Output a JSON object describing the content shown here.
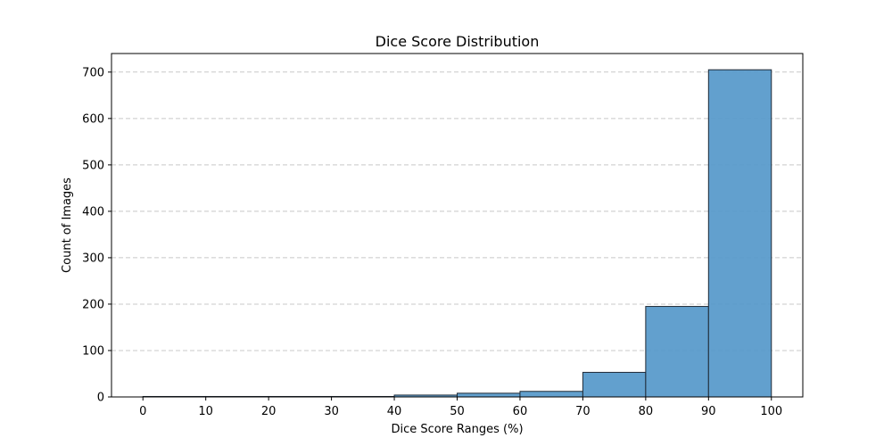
{
  "chart_data": {
    "type": "bar",
    "title": "Dice Score Distribution",
    "xlabel": "Dice Score Ranges (%)",
    "ylabel": "Count of Images",
    "bins": [
      {
        "start": 0,
        "end": 10,
        "count": 1
      },
      {
        "start": 10,
        "end": 20,
        "count": 1
      },
      {
        "start": 20,
        "end": 30,
        "count": 1
      },
      {
        "start": 30,
        "end": 40,
        "count": 1
      },
      {
        "start": 40,
        "end": 50,
        "count": 4
      },
      {
        "start": 50,
        "end": 60,
        "count": 8
      },
      {
        "start": 60,
        "end": 70,
        "count": 12
      },
      {
        "start": 70,
        "end": 80,
        "count": 53
      },
      {
        "start": 80,
        "end": 90,
        "count": 195
      },
      {
        "start": 90,
        "end": 100,
        "count": 705
      }
    ],
    "xlim": [
      -5,
      105
    ],
    "ylim": [
      0,
      740
    ],
    "x_ticks": [
      "0",
      "10",
      "20",
      "30",
      "40",
      "50",
      "60",
      "70",
      "80",
      "90",
      "100"
    ],
    "y_ticks": [
      "0",
      "100",
      "200",
      "300",
      "400",
      "500",
      "600",
      "700"
    ],
    "grid": "horizontal-dashed",
    "bar_color": "#5a9bcb",
    "bar_edge_color": "#1f2a36",
    "grid_color": "#c8c8c8"
  }
}
